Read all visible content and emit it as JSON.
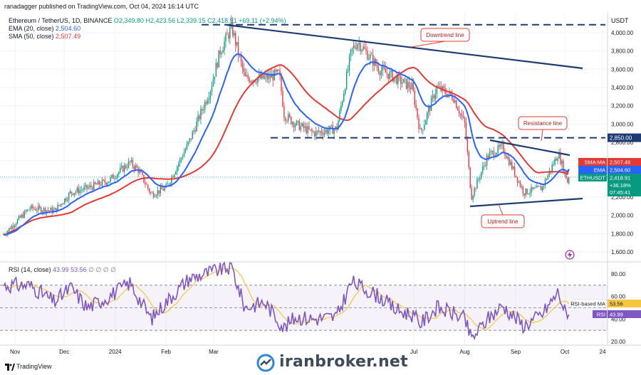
{
  "publisher_line": "ranadagger published on TradingView.com, Oct 04, 2024 16:14 UTC",
  "symbol_line": "Ethereum / TetherUS, 1D, BINANCE",
  "ohlc": {
    "o": "O2,349.80",
    "h": "H2,423.56",
    "l": "L2,339.15",
    "c": "C2,418.91",
    "chg": "+69.11 (+2.94%)"
  },
  "ema_line": {
    "label": "EMA (20, close)",
    "value": "2,504.60"
  },
  "sma_line": {
    "label": "SMA (50, close)",
    "value": "2,507.49"
  },
  "rsi_line": {
    "label": "RSI (14, close)",
    "values": "43.99  53.56"
  },
  "currency": "USDT",
  "footer": {
    "brand": "TradingView",
    "watermark": "iranbroker.net"
  },
  "colors": {
    "up": "#089981",
    "down": "#f23645",
    "ema": "#2962ff",
    "sma": "#e53935",
    "trend": "#1e3a73",
    "rsi": "#7e57c2",
    "rsi_ma": "#f5c642"
  },
  "chart_data": {
    "type": "candlestick",
    "title": "Ethereum / TetherUS, 1D, BINANCE",
    "y_axis": {
      "ticks": [
        1600,
        1800,
        2000,
        2200,
        2400,
        2600,
        2800,
        3000,
        3200,
        3400,
        3600,
        3800,
        4000
      ],
      "tick_labels": [
        "1,600.00",
        "1,800.00",
        "2,000.00",
        "2,200.00",
        "2,400.00",
        "2,600.00",
        "2,800.00",
        "3,000.00",
        "3,200.00",
        "3,400.00",
        "3,600.00",
        "3,800.00",
        "4,000.00"
      ],
      "range": [
        1500,
        4080
      ]
    },
    "x_axis": {
      "tick_labels": [
        "Nov",
        "Dec",
        "2024",
        "Feb",
        "Mar",
        "Jul",
        "Aug",
        "Sep",
        "Oct",
        "24"
      ]
    },
    "close_path": [
      [
        "2023-10-25",
        1790
      ],
      [
        "2023-11-10",
        2080
      ],
      [
        "2023-11-25",
        2050
      ],
      [
        "2023-12-05",
        2250
      ],
      [
        "2023-12-15",
        2300
      ],
      [
        "2023-12-28",
        2380
      ],
      [
        "2024-01-10",
        2580
      ],
      [
        "2024-01-15",
        2500
      ],
      [
        "2024-01-23",
        2230
      ],
      [
        "2024-02-01",
        2300
      ],
      [
        "2024-02-15",
        2800
      ],
      [
        "2024-02-28",
        3380
      ],
      [
        "2024-03-05",
        3800
      ],
      [
        "2024-03-12",
        4060
      ],
      [
        "2024-03-20",
        3500
      ],
      [
        "2024-04-01",
        3500
      ],
      [
        "2024-04-10",
        3550
      ],
      [
        "2024-04-13",
        3100
      ],
      [
        "2024-04-20",
        3000
      ],
      [
        "2024-05-01",
        2900
      ],
      [
        "2024-05-15",
        2950
      ],
      [
        "2024-05-24",
        3800
      ],
      [
        "2024-05-28",
        3900
      ],
      [
        "2024-06-10",
        3600
      ],
      [
        "2024-06-20",
        3500
      ],
      [
        "2024-06-30",
        3400
      ],
      [
        "2024-07-05",
        2900
      ],
      [
        "2024-07-15",
        3400
      ],
      [
        "2024-07-25",
        3300
      ],
      [
        "2024-08-01",
        3000
      ],
      [
        "2024-08-05",
        2200
      ],
      [
        "2024-08-15",
        2650
      ],
      [
        "2024-08-24",
        2750
      ],
      [
        "2024-09-06",
        2250
      ],
      [
        "2024-09-17",
        2300
      ],
      [
        "2024-09-27",
        2680
      ],
      [
        "2024-10-03",
        2350
      ],
      [
        "2024-10-04",
        2418.91
      ]
    ],
    "ema20": {
      "name": "EMA",
      "last": 2504.6
    },
    "sma50": {
      "name": "SMA:MA",
      "last": 2507.49
    },
    "levels": [
      {
        "price": 4088,
        "style": "dashed"
      },
      {
        "price": 2850,
        "style": "dashed",
        "label": "2,850.00"
      }
    ],
    "annotations": [
      {
        "text": "Downtrend line"
      },
      {
        "text": "Resistance line"
      },
      {
        "text": "Uptrend line"
      }
    ],
    "price_tags": [
      {
        "text": "SMA:MA",
        "value": "2,507.49"
      },
      {
        "text": "EMA",
        "value": "2,504.60"
      },
      {
        "text": "ETHUSDT",
        "value": "2,418.91",
        "sub": [
          "+36.18%",
          "07:45:41"
        ]
      }
    ],
    "rsi": {
      "ticks": [
        20,
        40,
        60,
        80
      ],
      "tick_labels": [
        "20.00",
        "40.00",
        "60.00",
        "80.00"
      ],
      "value": 43.99,
      "ma_value": 53.56,
      "tags": [
        {
          "text": "RSI-based MA",
          "value": "53.56"
        },
        {
          "text": "RSI",
          "value": "43.99"
        }
      ],
      "path": [
        [
          "2023-10-25",
          70
        ],
        [
          "2023-11-10",
          70
        ],
        [
          "2023-11-25",
          55
        ],
        [
          "2023-12-05",
          68
        ],
        [
          "2023-12-15",
          50
        ],
        [
          "2023-12-28",
          60
        ],
        [
          "2024-01-10",
          72
        ],
        [
          "2024-01-23",
          40
        ],
        [
          "2024-02-01",
          55
        ],
        [
          "2024-02-15",
          76
        ],
        [
          "2024-03-05",
          84
        ],
        [
          "2024-03-12",
          86
        ],
        [
          "2024-03-20",
          50
        ],
        [
          "2024-04-01",
          55
        ],
        [
          "2024-04-13",
          32
        ],
        [
          "2024-04-20",
          42
        ],
        [
          "2024-05-01",
          40
        ],
        [
          "2024-05-15",
          42
        ],
        [
          "2024-05-24",
          73
        ],
        [
          "2024-06-10",
          60
        ],
        [
          "2024-06-20",
          48
        ],
        [
          "2024-06-30",
          44
        ],
        [
          "2024-07-05",
          36
        ],
        [
          "2024-07-15",
          50
        ],
        [
          "2024-07-25",
          45
        ],
        [
          "2024-08-01",
          40
        ],
        [
          "2024-08-05",
          22
        ],
        [
          "2024-08-15",
          40
        ],
        [
          "2024-08-24",
          52
        ],
        [
          "2024-09-06",
          34
        ],
        [
          "2024-09-17",
          44
        ],
        [
          "2024-09-27",
          64
        ],
        [
          "2024-10-03",
          38
        ],
        [
          "2024-10-04",
          43.99
        ]
      ]
    }
  }
}
